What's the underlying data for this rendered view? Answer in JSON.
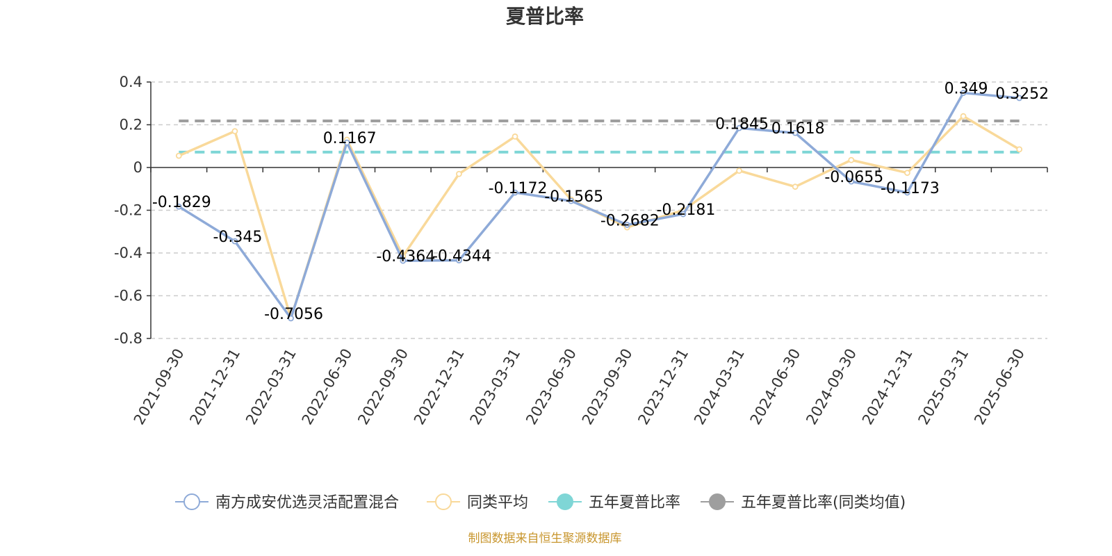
{
  "chart_data": {
    "type": "line",
    "title": "夏普比率",
    "categories": [
      "2021-09-30",
      "2021-12-31",
      "2022-03-31",
      "2022-06-30",
      "2022-09-30",
      "2022-12-31",
      "2023-03-31",
      "2023-06-30",
      "2023-09-30",
      "2023-12-31",
      "2024-03-31",
      "2024-06-30",
      "2024-09-30",
      "2024-12-31",
      "2025-03-31",
      "2025-06-30"
    ],
    "ylim": [
      -0.8,
      0.4
    ],
    "yticks": [
      "0.4",
      "0.2",
      "0",
      "-0.2",
      "-0.4",
      "-0.6",
      "-0.8"
    ],
    "grid": true,
    "series": [
      {
        "name": "南方成安优选灵活配置混合",
        "color": "#8eaad8",
        "values": [
          -0.1829,
          -0.345,
          -0.7056,
          0.1167,
          -0.4364,
          -0.4344,
          -0.1172,
          -0.1565,
          -0.2682,
          -0.2181,
          0.1845,
          0.1618,
          -0.0655,
          -0.1173,
          0.349,
          0.3252
        ],
        "labels": [
          "-0.1829",
          "-0.345",
          "-0.7056",
          "0.1167",
          "-0.4364",
          "-0.4344",
          "-0.1172",
          "-0.1565",
          "-0.2682",
          "-0.2181",
          "0.1845",
          "0.1618",
          "-0.0655",
          "-0.1173",
          "0.349",
          "0.3252"
        ]
      },
      {
        "name": "同类平均",
        "color": "#f9d99a",
        "values": [
          0.055,
          0.17,
          -0.705,
          0.13,
          -0.415,
          -0.03,
          0.145,
          -0.15,
          -0.28,
          -0.2,
          -0.015,
          -0.09,
          0.035,
          -0.025,
          0.24,
          0.085
        ]
      },
      {
        "name": "五年夏普比率",
        "color": "#7fd6d6",
        "constant": 0.072
      },
      {
        "name": "五年夏普比率(同类均值)",
        "color": "#9e9e9e",
        "constant": 0.218
      }
    ],
    "legend_position": "bottom",
    "source": "制图数据来自恒生聚源数据库"
  }
}
